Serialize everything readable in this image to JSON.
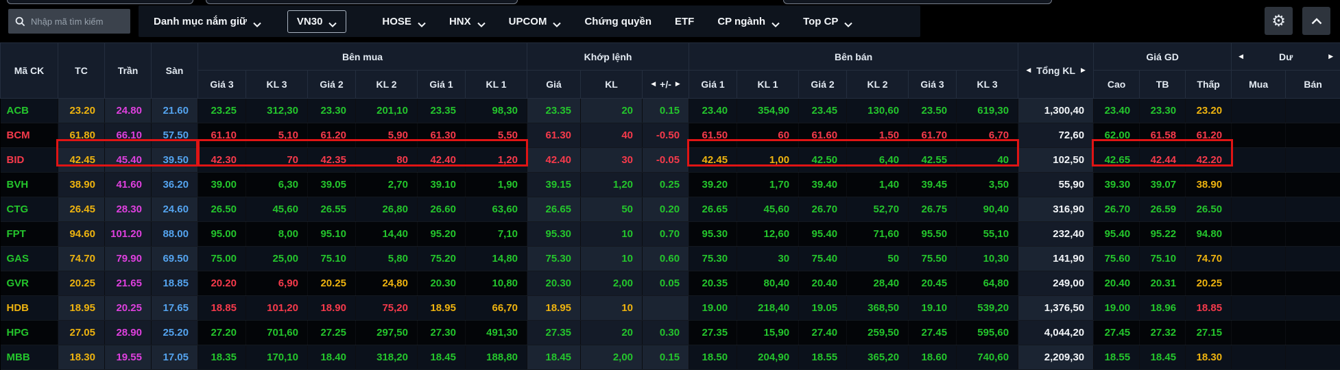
{
  "topbar": {
    "search": {
      "placeholder": "Nhập mã tìm kiếm"
    },
    "holdings_menu": "Danh mục nắm giữ",
    "tabs": [
      {
        "label": "VN30",
        "active": true,
        "dropdown": true
      },
      {
        "label": "HOSE",
        "active": false,
        "dropdown": true
      },
      {
        "label": "HNX",
        "active": false,
        "dropdown": true
      },
      {
        "label": "UPCOM",
        "active": false,
        "dropdown": true
      },
      {
        "label": "Chứng quyền",
        "active": false,
        "dropdown": false
      },
      {
        "label": "ETF",
        "active": false,
        "dropdown": false
      },
      {
        "label": "CP ngành",
        "active": false,
        "dropdown": true
      },
      {
        "label": "Top CP",
        "active": false,
        "dropdown": true
      }
    ]
  },
  "icons": {
    "gear": "⚙",
    "left_arrow": "◀",
    "right_arrow": "▶"
  },
  "table": {
    "group_headers": {
      "ben_mua": "Bên mua",
      "khop_lenh": "Khớp lệnh",
      "ben_ban": "Bên bán",
      "tong_kl": "Tổng KL",
      "gia_gd": "Giá GD",
      "du": "Dư"
    },
    "columns": {
      "ma_ck": "Mã CK",
      "tc": "TC",
      "tran": "Trần",
      "san": "Sàn",
      "gia3": "Giá 3",
      "kl3": "KL 3",
      "gia2": "Giá 2",
      "kl2": "KL 2",
      "gia1": "Giá 1",
      "kl1": "KL 1",
      "gia": "Giá",
      "kl": "KL",
      "change": "+/-",
      "cao": "Cao",
      "tb": "TB",
      "thap": "Thấp",
      "mua": "Mua",
      "ban": "Bán"
    },
    "rows": [
      {
        "ticker": "ACB",
        "ticker_color": "g",
        "cells": [
          [
            "23.20",
            "y"
          ],
          [
            "24.80",
            "m"
          ],
          [
            "21.60",
            "b"
          ],
          [
            "23.25",
            "g"
          ],
          [
            "312,30",
            "g"
          ],
          [
            "23.30",
            "g"
          ],
          [
            "201,10",
            "g"
          ],
          [
            "23.35",
            "g"
          ],
          [
            "98,30",
            "g"
          ],
          [
            "23.35",
            "g"
          ],
          [
            "20",
            "g"
          ],
          [
            "0.15",
            "g"
          ],
          [
            "23.40",
            "g"
          ],
          [
            "354,90",
            "g"
          ],
          [
            "23.45",
            "g"
          ],
          [
            "130,60",
            "g"
          ],
          [
            "23.50",
            "g"
          ],
          [
            "619,30",
            "g"
          ],
          [
            "1,300,40",
            "w"
          ],
          [
            "23.40",
            "g"
          ],
          [
            "23.30",
            "g"
          ],
          [
            "23.20",
            "y"
          ],
          [
            "",
            ""
          ],
          [
            "",
            ""
          ]
        ]
      },
      {
        "ticker": "BCM",
        "ticker_color": "r",
        "cells": [
          [
            "61.80",
            "y"
          ],
          [
            "66.10",
            "m"
          ],
          [
            "57.50",
            "b"
          ],
          [
            "61.10",
            "r"
          ],
          [
            "5,10",
            "r"
          ],
          [
            "61.20",
            "r"
          ],
          [
            "5,90",
            "r"
          ],
          [
            "61.30",
            "r"
          ],
          [
            "5,50",
            "r"
          ],
          [
            "61.30",
            "r"
          ],
          [
            "40",
            "r"
          ],
          [
            "-0.50",
            "r"
          ],
          [
            "61.50",
            "r"
          ],
          [
            "60",
            "r"
          ],
          [
            "61.60",
            "r"
          ],
          [
            "1,50",
            "r"
          ],
          [
            "61.70",
            "r"
          ],
          [
            "6,70",
            "r"
          ],
          [
            "72,60",
            "w"
          ],
          [
            "62.00",
            "g"
          ],
          [
            "61.58",
            "r"
          ],
          [
            "61.20",
            "r"
          ],
          [
            "",
            ""
          ],
          [
            "",
            ""
          ]
        ]
      },
      {
        "ticker": "BID",
        "ticker_color": "r",
        "cells": [
          [
            "42.45",
            "y"
          ],
          [
            "45.40",
            "m"
          ],
          [
            "39.50",
            "b"
          ],
          [
            "42.30",
            "r"
          ],
          [
            "70",
            "r"
          ],
          [
            "42.35",
            "r"
          ],
          [
            "80",
            "r"
          ],
          [
            "42.40",
            "r"
          ],
          [
            "1,20",
            "r"
          ],
          [
            "42.40",
            "r"
          ],
          [
            "30",
            "r"
          ],
          [
            "-0.05",
            "r"
          ],
          [
            "42.45",
            "y"
          ],
          [
            "1,00",
            "y"
          ],
          [
            "42.50",
            "g"
          ],
          [
            "6,40",
            "g"
          ],
          [
            "42.55",
            "g"
          ],
          [
            "40",
            "g"
          ],
          [
            "102,50",
            "w"
          ],
          [
            "42.65",
            "g"
          ],
          [
            "42.44",
            "r"
          ],
          [
            "42.20",
            "r"
          ],
          [
            "",
            ""
          ],
          [
            "",
            ""
          ]
        ]
      },
      {
        "ticker": "BVH",
        "ticker_color": "g",
        "cells": [
          [
            "38.90",
            "y"
          ],
          [
            "41.60",
            "m"
          ],
          [
            "36.20",
            "b"
          ],
          [
            "39.00",
            "g"
          ],
          [
            "6,30",
            "g"
          ],
          [
            "39.05",
            "g"
          ],
          [
            "2,70",
            "g"
          ],
          [
            "39.10",
            "g"
          ],
          [
            "1,90",
            "g"
          ],
          [
            "39.15",
            "g"
          ],
          [
            "1,20",
            "g"
          ],
          [
            "0.25",
            "g"
          ],
          [
            "39.20",
            "g"
          ],
          [
            "1,70",
            "g"
          ],
          [
            "39.40",
            "g"
          ],
          [
            "1,40",
            "g"
          ],
          [
            "39.45",
            "g"
          ],
          [
            "3,50",
            "g"
          ],
          [
            "55,90",
            "w"
          ],
          [
            "39.30",
            "g"
          ],
          [
            "39.07",
            "g"
          ],
          [
            "38.90",
            "y"
          ],
          [
            "",
            ""
          ],
          [
            "",
            ""
          ]
        ]
      },
      {
        "ticker": "CTG",
        "ticker_color": "g",
        "cells": [
          [
            "26.45",
            "y"
          ],
          [
            "28.30",
            "m"
          ],
          [
            "24.60",
            "b"
          ],
          [
            "26.50",
            "g"
          ],
          [
            "45,60",
            "g"
          ],
          [
            "26.55",
            "g"
          ],
          [
            "26,80",
            "g"
          ],
          [
            "26.60",
            "g"
          ],
          [
            "63,60",
            "g"
          ],
          [
            "26.65",
            "g"
          ],
          [
            "50",
            "g"
          ],
          [
            "0.20",
            "g"
          ],
          [
            "26.65",
            "g"
          ],
          [
            "45,60",
            "g"
          ],
          [
            "26.70",
            "g"
          ],
          [
            "52,70",
            "g"
          ],
          [
            "26.75",
            "g"
          ],
          [
            "90,40",
            "g"
          ],
          [
            "316,90",
            "w"
          ],
          [
            "26.70",
            "g"
          ],
          [
            "26.59",
            "g"
          ],
          [
            "26.50",
            "g"
          ],
          [
            "",
            ""
          ],
          [
            "",
            ""
          ]
        ]
      },
      {
        "ticker": "FPT",
        "ticker_color": "g",
        "cells": [
          [
            "94.60",
            "y"
          ],
          [
            "101.20",
            "m"
          ],
          [
            "88.00",
            "b"
          ],
          [
            "95.00",
            "g"
          ],
          [
            "8,00",
            "g"
          ],
          [
            "95.10",
            "g"
          ],
          [
            "14,40",
            "g"
          ],
          [
            "95.20",
            "g"
          ],
          [
            "7,10",
            "g"
          ],
          [
            "95.30",
            "g"
          ],
          [
            "10",
            "g"
          ],
          [
            "0.70",
            "g"
          ],
          [
            "95.30",
            "g"
          ],
          [
            "12,60",
            "g"
          ],
          [
            "95.40",
            "g"
          ],
          [
            "71,60",
            "g"
          ],
          [
            "95.50",
            "g"
          ],
          [
            "55,10",
            "g"
          ],
          [
            "232,40",
            "w"
          ],
          [
            "95.40",
            "g"
          ],
          [
            "95.22",
            "g"
          ],
          [
            "94.80",
            "g"
          ],
          [
            "",
            ""
          ],
          [
            "",
            ""
          ]
        ]
      },
      {
        "ticker": "GAS",
        "ticker_color": "g",
        "cells": [
          [
            "74.70",
            "y"
          ],
          [
            "79.90",
            "m"
          ],
          [
            "69.50",
            "b"
          ],
          [
            "75.00",
            "g"
          ],
          [
            "25,00",
            "g"
          ],
          [
            "75.10",
            "g"
          ],
          [
            "5,80",
            "g"
          ],
          [
            "75.20",
            "g"
          ],
          [
            "14,80",
            "g"
          ],
          [
            "75.30",
            "g"
          ],
          [
            "10",
            "g"
          ],
          [
            "0.60",
            "g"
          ],
          [
            "75.30",
            "g"
          ],
          [
            "30",
            "g"
          ],
          [
            "75.40",
            "g"
          ],
          [
            "50",
            "g"
          ],
          [
            "75.50",
            "g"
          ],
          [
            "10,30",
            "g"
          ],
          [
            "141,90",
            "w"
          ],
          [
            "75.60",
            "g"
          ],
          [
            "75.10",
            "g"
          ],
          [
            "74.70",
            "y"
          ],
          [
            "",
            ""
          ],
          [
            "",
            ""
          ]
        ]
      },
      {
        "ticker": "GVR",
        "ticker_color": "g",
        "cells": [
          [
            "20.25",
            "y"
          ],
          [
            "21.65",
            "m"
          ],
          [
            "18.85",
            "b"
          ],
          [
            "20.20",
            "r"
          ],
          [
            "6,90",
            "r"
          ],
          [
            "20.25",
            "y"
          ],
          [
            "24,80",
            "y"
          ],
          [
            "20.30",
            "g"
          ],
          [
            "10,80",
            "g"
          ],
          [
            "20.30",
            "g"
          ],
          [
            "2,00",
            "g"
          ],
          [
            "0.05",
            "g"
          ],
          [
            "20.35",
            "g"
          ],
          [
            "80,40",
            "g"
          ],
          [
            "20.40",
            "g"
          ],
          [
            "28,40",
            "g"
          ],
          [
            "20.45",
            "g"
          ],
          [
            "64,80",
            "g"
          ],
          [
            "249,00",
            "w"
          ],
          [
            "20.40",
            "g"
          ],
          [
            "20.31",
            "g"
          ],
          [
            "20.25",
            "y"
          ],
          [
            "",
            ""
          ],
          [
            "",
            ""
          ]
        ]
      },
      {
        "ticker": "HDB",
        "ticker_color": "y",
        "cells": [
          [
            "18.95",
            "y"
          ],
          [
            "20.25",
            "m"
          ],
          [
            "17.65",
            "b"
          ],
          [
            "18.85",
            "r"
          ],
          [
            "101,20",
            "r"
          ],
          [
            "18.90",
            "r"
          ],
          [
            "75,20",
            "r"
          ],
          [
            "18.95",
            "y"
          ],
          [
            "66,70",
            "y"
          ],
          [
            "18.95",
            "y"
          ],
          [
            "10",
            "y"
          ],
          [
            "",
            ""
          ],
          [
            "19.00",
            "g"
          ],
          [
            "218,40",
            "g"
          ],
          [
            "19.05",
            "g"
          ],
          [
            "368,50",
            "g"
          ],
          [
            "19.10",
            "g"
          ],
          [
            "539,20",
            "g"
          ],
          [
            "1,376,50",
            "w"
          ],
          [
            "19.00",
            "g"
          ],
          [
            "18.96",
            "g"
          ],
          [
            "18.85",
            "r"
          ],
          [
            "",
            ""
          ],
          [
            "",
            ""
          ]
        ]
      },
      {
        "ticker": "HPG",
        "ticker_color": "g",
        "cells": [
          [
            "27.05",
            "y"
          ],
          [
            "28.90",
            "m"
          ],
          [
            "25.20",
            "b"
          ],
          [
            "27.20",
            "g"
          ],
          [
            "701,60",
            "g"
          ],
          [
            "27.25",
            "g"
          ],
          [
            "297,50",
            "g"
          ],
          [
            "27.30",
            "g"
          ],
          [
            "491,30",
            "g"
          ],
          [
            "27.35",
            "g"
          ],
          [
            "20",
            "g"
          ],
          [
            "0.30",
            "g"
          ],
          [
            "27.35",
            "g"
          ],
          [
            "15,90",
            "g"
          ],
          [
            "27.40",
            "g"
          ],
          [
            "259,50",
            "g"
          ],
          [
            "27.45",
            "g"
          ],
          [
            "595,60",
            "g"
          ],
          [
            "4,044,20",
            "w"
          ],
          [
            "27.45",
            "g"
          ],
          [
            "27.32",
            "g"
          ],
          [
            "27.15",
            "g"
          ],
          [
            "",
            ""
          ],
          [
            "",
            ""
          ]
        ]
      },
      {
        "ticker": "MBB",
        "ticker_color": "g",
        "cells": [
          [
            "18.30",
            "y"
          ],
          [
            "19.55",
            "m"
          ],
          [
            "17.05",
            "b"
          ],
          [
            "18.35",
            "g"
          ],
          [
            "170,10",
            "g"
          ],
          [
            "18.40",
            "g"
          ],
          [
            "318,20",
            "g"
          ],
          [
            "18.45",
            "g"
          ],
          [
            "188,80",
            "g"
          ],
          [
            "18.45",
            "g"
          ],
          [
            "2,00",
            "g"
          ],
          [
            "0.15",
            "g"
          ],
          [
            "18.50",
            "g"
          ],
          [
            "204,90",
            "g"
          ],
          [
            "18.55",
            "g"
          ],
          [
            "365,20",
            "g"
          ],
          [
            "18.60",
            "g"
          ],
          [
            "740,60",
            "g"
          ],
          [
            "2,209,30",
            "w"
          ],
          [
            "18.55",
            "g"
          ],
          [
            "18.45",
            "g"
          ],
          [
            "18.30",
            "y"
          ],
          [
            "",
            ""
          ],
          [
            "",
            ""
          ]
        ]
      }
    ]
  },
  "colors": {
    "up": "#24c52c",
    "down": "#f63a4b",
    "reference": "#eeb30f",
    "ceiling": "#de40de",
    "floor": "#54a3ee",
    "neutral": "#f2f5f8",
    "highlight_border": "#e01414"
  },
  "highlights": {
    "ticker": "ACB",
    "regions": [
      "tc-tran-san",
      "ben-mua",
      "ben-ban",
      "gia-gd"
    ]
  }
}
